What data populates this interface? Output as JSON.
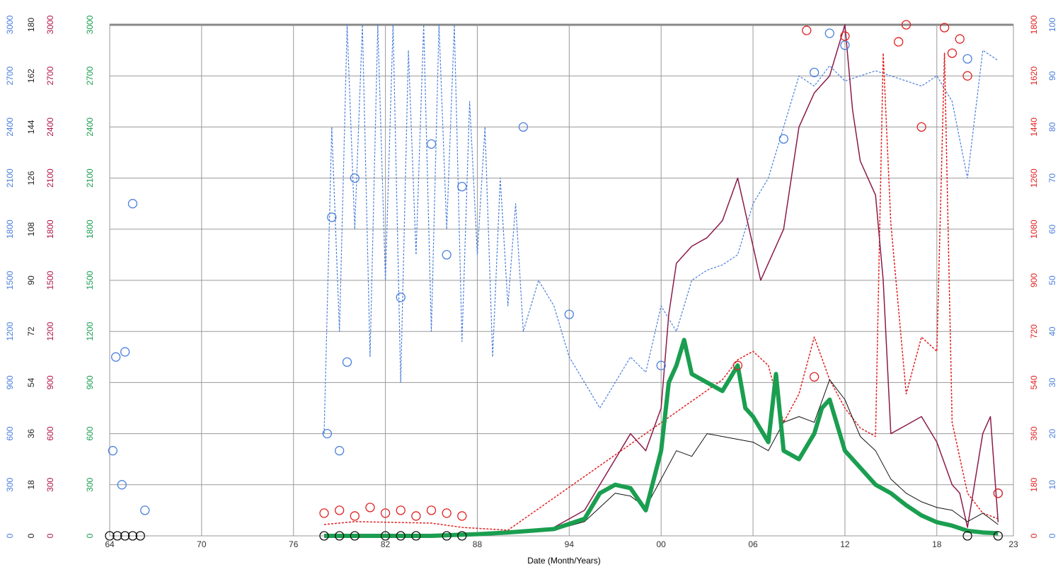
{
  "chart_data": {
    "type": "line",
    "x_label": "Date (Month/Years)",
    "xlim": [
      1964,
      2023
    ],
    "xticks": [
      {
        "value": 1964,
        "label": "64"
      },
      {
        "value": 1970,
        "label": "70"
      },
      {
        "value": 1976,
        "label": "76"
      },
      {
        "value": 1982,
        "label": "82"
      },
      {
        "value": 1988,
        "label": "88"
      },
      {
        "value": 1994,
        "label": "94"
      },
      {
        "value": 2000,
        "label": "00"
      },
      {
        "value": 2006,
        "label": "06"
      },
      {
        "value": 2012,
        "label": "12"
      },
      {
        "value": 2018,
        "label": "18"
      },
      {
        "value": 2023,
        "label": "23"
      }
    ],
    "grid": true,
    "grid_axis": 3,
    "axes": [
      {
        "side": "left",
        "color": "#4a7fdc",
        "lim": [
          0,
          3000
        ],
        "ticks": [
          0,
          300,
          600,
          900,
          1200,
          1500,
          1800,
          2100,
          2400,
          2700,
          3000
        ]
      },
      {
        "side": "left",
        "color": "#222222",
        "lim": [
          0,
          180
        ],
        "ticks": [
          0,
          18,
          36,
          54,
          72,
          90,
          108,
          126,
          144,
          162,
          180
        ]
      },
      {
        "side": "left",
        "color": "#b0174a",
        "lim": [
          0,
          3000
        ],
        "ticks": [
          0,
          300,
          600,
          900,
          1200,
          1500,
          1800,
          2100,
          2400,
          2700,
          3000
        ]
      },
      {
        "side": "left",
        "color": "#1a9e50",
        "lim": [
          0,
          3000
        ],
        "ticks": [
          0,
          300,
          600,
          900,
          1200,
          1500,
          1800,
          2100,
          2400,
          2700,
          3000
        ]
      },
      {
        "side": "right",
        "color": "#e02020",
        "lim": [
          0,
          1800
        ],
        "ticks": [
          0,
          180,
          360,
          540,
          720,
          900,
          1080,
          1260,
          1440,
          1620,
          1800
        ]
      },
      {
        "side": "right",
        "color": "#4a7fdc",
        "lim": [
          0,
          100
        ],
        "ticks": [
          0,
          10,
          20,
          30,
          40,
          50,
          60,
          70,
          80,
          90,
          100
        ]
      }
    ],
    "series": [
      {
        "axis": 5,
        "style": "dashed",
        "color": "#4a7fdc",
        "width": 1.2,
        "x": [
          1978,
          1978.5,
          1979,
          1979.5,
          1980,
          1980.5,
          1981,
          1981.5,
          1982,
          1982.5,
          1983,
          1983.5,
          1984,
          1984.5,
          1985,
          1985.5,
          1986,
          1986.5,
          1987,
          1987.5,
          1988,
          1988.5,
          1989,
          1989.5,
          1990,
          1990.5,
          1991,
          1992,
          1993,
          1994,
          1995,
          1996,
          1997,
          1998,
          1999,
          2000,
          2001,
          2002,
          2003,
          2004,
          2005,
          2006,
          2007,
          2008,
          2009,
          2010,
          2011,
          2012,
          2013,
          2014,
          2015,
          2016,
          2017,
          2018,
          2019,
          2020,
          2021,
          2022
        ],
        "values": [
          20,
          80,
          40,
          100,
          60,
          100,
          35,
          100,
          50,
          100,
          30,
          95,
          55,
          100,
          40,
          100,
          60,
          100,
          38,
          85,
          55,
          80,
          35,
          70,
          45,
          65,
          40,
          50,
          45,
          35,
          30,
          25,
          30,
          35,
          32,
          45,
          40,
          50,
          52,
          53,
          55,
          65,
          70,
          80,
          90,
          88,
          92,
          89,
          90,
          91,
          90,
          89,
          88,
          90,
          85,
          70,
          95,
          93
        ]
      },
      {
        "axis": 4,
        "style": "dashed",
        "color": "#e02020",
        "width": 1.5,
        "x": [
          1978,
          1980,
          1985,
          1987,
          1990,
          2004,
          2005,
          2006,
          2007,
          2008,
          2009,
          2010,
          2011,
          2012,
          2013,
          2014,
          2014.5,
          2015,
          2016,
          2017,
          2018,
          2018.5,
          2019,
          2020,
          2021,
          2022
        ],
        "values": [
          40,
          50,
          45,
          30,
          20,
          550,
          620,
          650,
          600,
          400,
          500,
          700,
          550,
          450,
          380,
          350,
          1700,
          1100,
          500,
          700,
          650,
          1700,
          400,
          150,
          80,
          60
        ]
      },
      {
        "axis": 2,
        "style": "line",
        "color": "#8b1a4a",
        "width": 1.5,
        "x": [
          1993,
          1995,
          1996,
          1997,
          1998,
          1999,
          2000,
          2000.5,
          2001,
          2002,
          2003,
          2004,
          2005,
          2006,
          2006.5,
          2007,
          2008,
          2009,
          2010,
          2011,
          2012,
          2012.5,
          2013,
          2014,
          2014.5,
          2015,
          2016,
          2017,
          2018,
          2019,
          2019.5,
          2020,
          2021,
          2021.5,
          2022
        ],
        "values": [
          50,
          150,
          300,
          450,
          600,
          500,
          750,
          1300,
          1600,
          1700,
          1750,
          1850,
          2100,
          1700,
          1500,
          1600,
          1800,
          2400,
          2600,
          2700,
          3000,
          2500,
          2200,
          2000,
          1500,
          600,
          650,
          700,
          550,
          300,
          250,
          50,
          600,
          700,
          80
        ]
      },
      {
        "axis": 1,
        "style": "line",
        "color": "#111111",
        "width": 1,
        "x": [
          1993,
          1995,
          1996,
          1997,
          1998,
          1999,
          2000,
          2001,
          2002,
          2003,
          2004,
          2005,
          2006,
          2007,
          2008,
          2009,
          2010,
          2011,
          2012,
          2013,
          2014,
          2015,
          2016,
          2017,
          2018,
          2019,
          2020,
          2021,
          2022
        ],
        "values": [
          2,
          5,
          10,
          15,
          14,
          10,
          20,
          30,
          28,
          36,
          35,
          34,
          33,
          30,
          40,
          42,
          40,
          55,
          48,
          35,
          30,
          20,
          15,
          12,
          10,
          9,
          5,
          8,
          4
        ]
      },
      {
        "axis": 3,
        "style": "line",
        "color": "#1a9e50",
        "width": 6,
        "x": [
          1978,
          1980,
          1985,
          1988,
          1990,
          1993,
          1995,
          1996,
          1997,
          1998,
          1999,
          2000,
          2000.5,
          2001,
          2001.5,
          2002,
          2003,
          2004,
          2005,
          2005.5,
          2006,
          2007,
          2007.5,
          2008,
          2009,
          2010,
          2010.5,
          2011,
          2012,
          2013,
          2014,
          2015,
          2016,
          2017,
          2018,
          2019,
          2020,
          2021,
          2022
        ],
        "values": [
          0,
          0,
          0,
          10,
          20,
          40,
          100,
          250,
          300,
          280,
          150,
          500,
          900,
          1000,
          1150,
          950,
          900,
          850,
          1000,
          750,
          700,
          550,
          950,
          500,
          450,
          600,
          750,
          800,
          500,
          400,
          300,
          250,
          180,
          120,
          80,
          60,
          30,
          20,
          15
        ]
      },
      {
        "axis": 0,
        "style": "circles",
        "color": "#4a7fdc",
        "x": [
          1964.2,
          1964.4,
          1964.8,
          1965,
          1965.5,
          1966.3,
          1978.2,
          1978.5,
          1979,
          1979.5,
          1980,
          1983,
          1985,
          1986,
          1987,
          1991,
          1994,
          2000,
          2008,
          2010,
          2011,
          2012,
          2020,
          2022
        ],
        "values": [
          500,
          1050,
          300,
          1080,
          1950,
          150,
          600,
          1870,
          500,
          1020,
          2100,
          1400,
          2300,
          1650,
          2050,
          2400,
          1300,
          1000,
          2330,
          2720,
          2950,
          2880,
          2800,
          250
        ]
      },
      {
        "axis": 4,
        "style": "circles",
        "color": "#e02020",
        "x": [
          1978,
          1979,
          1980,
          1981,
          1982,
          1983,
          1984,
          1985,
          1986,
          1987,
          2005,
          2010,
          2009.5,
          2012,
          2015.5,
          2016,
          2017,
          2018.5,
          2019,
          2019.5,
          2020,
          2022
        ],
        "values": [
          80,
          90,
          70,
          100,
          80,
          90,
          70,
          90,
          80,
          70,
          600,
          560,
          1780,
          1760,
          1740,
          1800,
          1440,
          1790,
          1700,
          1750,
          1620,
          150
        ]
      },
      {
        "axis": 1,
        "style": "circles",
        "color": "#111111",
        "x": [
          1964,
          1964.5,
          1965,
          1965.5,
          1966,
          1978,
          1979,
          1980,
          1982,
          1983,
          1984,
          1986,
          1987,
          2020,
          2022
        ],
        "values": [
          0,
          0,
          0,
          0,
          0,
          0,
          0,
          0,
          0,
          0,
          0,
          0,
          0,
          0,
          0
        ]
      }
    ]
  }
}
